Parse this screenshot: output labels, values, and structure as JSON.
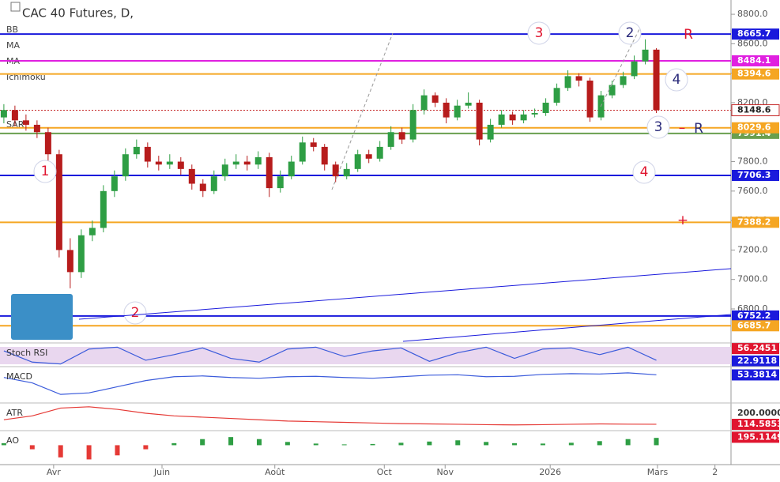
{
  "chart_data": {
    "type": "candlestick",
    "title": "CAC 40 Futures, D,",
    "indicator_labels": [
      "BB",
      "MA",
      "MA",
      "Ichimoku",
      "SAR"
    ],
    "xlim": [
      -0.35,
      65.75
    ],
    "xticks": [
      {
        "value": 4.5,
        "label": "Avr"
      },
      {
        "value": 14.3,
        "label": "Juin"
      },
      {
        "value": 24.5,
        "label": "Août"
      },
      {
        "value": 34.4,
        "label": "Oct"
      },
      {
        "value": 39.9,
        "label": "Nov"
      },
      {
        "value": 49.4,
        "label": "2026"
      },
      {
        "value": 59.1,
        "label": "Mars"
      },
      {
        "value": 64.3,
        "label": "2"
      }
    ],
    "ylim": [
      6580,
      8897
    ],
    "yticks": [
      {
        "value": 8800,
        "label": "8800.0"
      },
      {
        "value": 8600,
        "label": "8600.0"
      },
      {
        "value": 8400,
        "label": "8400.0"
      },
      {
        "value": 8200,
        "label": "8200.0"
      },
      {
        "value": 8000,
        "label": "8000.0"
      },
      {
        "value": 7800,
        "label": "7800.0"
      },
      {
        "value": 7600,
        "label": "7600.0"
      },
      {
        "value": 7400,
        "label": "7400.0"
      },
      {
        "value": 7200,
        "label": "7200.0"
      },
      {
        "value": 7000,
        "label": "7000.0"
      },
      {
        "value": 6800,
        "label": "6800.0"
      }
    ],
    "up_color": "#2e9e44",
    "down_color": "#b71c1c",
    "open": [
      8100,
      8150,
      8080,
      8050,
      8000,
      7850,
      7200,
      7050,
      7300,
      7350,
      7600,
      7700,
      7850,
      7900,
      7800,
      7780,
      7800,
      7750,
      7650,
      7600,
      7700,
      7780,
      7800,
      7780,
      7830,
      7620,
      7700,
      7800,
      7930,
      7900,
      7780,
      7700,
      7750,
      7850,
      7820,
      7900,
      8000,
      7950,
      8150,
      8250,
      8200,
      8100,
      8180,
      8200,
      7950,
      8050,
      8120,
      8080,
      8120,
      8130,
      8200,
      8300,
      8380,
      8350,
      8100,
      8250,
      8320,
      8380,
      8480,
      8560
    ],
    "high": [
      8190,
      8180,
      8120,
      8080,
      8030,
      7880,
      7280,
      7340,
      7400,
      7640,
      7740,
      7890,
      7950,
      7930,
      7840,
      7850,
      7830,
      7780,
      7680,
      7740,
      7820,
      7850,
      7840,
      7870,
      7860,
      7740,
      7840,
      7970,
      7960,
      7920,
      7800,
      7790,
      7880,
      7880,
      7940,
      8040,
      8030,
      8190,
      8290,
      8270,
      8230,
      8220,
      8270,
      8220,
      8090,
      8150,
      8140,
      8150,
      8160,
      8230,
      8330,
      8420,
      8400,
      8370,
      8280,
      8350,
      8410,
      8520,
      8630,
      8570
    ],
    "low": [
      8060,
      8040,
      8010,
      7960,
      7800,
      7150,
      6940,
      7010,
      7260,
      7320,
      7560,
      7670,
      7820,
      7760,
      7740,
      7750,
      7710,
      7610,
      7560,
      7580,
      7670,
      7750,
      7740,
      7750,
      7560,
      7590,
      7680,
      7780,
      7870,
      7740,
      7660,
      7680,
      7730,
      7790,
      7800,
      7880,
      7920,
      7930,
      8120,
      8170,
      8060,
      8080,
      8160,
      7910,
      7930,
      8030,
      8050,
      8060,
      8100,
      8110,
      8180,
      8280,
      8310,
      8070,
      8080,
      8230,
      8300,
      8360,
      8460,
      8130
    ],
    "close": [
      8150,
      8080,
      8050,
      8000,
      7850,
      7200,
      7050,
      7300,
      7350,
      7600,
      7700,
      7850,
      7900,
      7800,
      7780,
      7800,
      7750,
      7650,
      7600,
      7700,
      7780,
      7800,
      7780,
      7830,
      7620,
      7700,
      7800,
      7930,
      7900,
      7780,
      7700,
      7750,
      7850,
      7820,
      7900,
      8000,
      7950,
      8150,
      8250,
      8200,
      8100,
      8180,
      8200,
      7950,
      8050,
      8120,
      8080,
      8120,
      8130,
      8200,
      8300,
      8380,
      8350,
      8100,
      8250,
      8320,
      8380,
      8480,
      8560,
      8150
    ],
    "levels": [
      {
        "value": 8665.7,
        "color": "#1a1adc"
      },
      {
        "value": 8484.1,
        "color": "#e020e0"
      },
      {
        "value": 8394.6,
        "color": "#f5a623"
      },
      {
        "value": 8148.6,
        "color": "#c62828"
      },
      {
        "value": 7991.4,
        "color": "#6a9f4f"
      },
      {
        "value": 8029.6,
        "color": "#f5a623"
      },
      {
        "value": 7706.3,
        "color": "#1a1adc"
      },
      {
        "value": 7388.2,
        "color": "#f5a623"
      },
      {
        "value": 6752.2,
        "color": "#1a1adc"
      },
      {
        "value": 6685.7,
        "color": "#f5a623"
      }
    ],
    "annotations": [
      {
        "text": "1",
        "color": "#e0152f"
      },
      {
        "text": "2",
        "color": "#e0152f"
      },
      {
        "text": "3",
        "color": "#e0152f"
      },
      {
        "text": "2",
        "color": "#2a2a7a"
      },
      {
        "text": "R",
        "color": "#e0152f"
      },
      {
        "text": "4",
        "color": "#2a2a7a"
      },
      {
        "text": "3",
        "color": "#2a2a7a"
      },
      {
        "text": "–",
        "color": "#e0152f"
      },
      {
        "text": "R",
        "color": "#2a2a7a"
      },
      {
        "text": "4",
        "color": "#e0152f"
      },
      {
        "text": "+",
        "color": "#e0152f"
      }
    ],
    "panes": [
      {
        "label": "Stoch RSI",
        "ylim": [
          10,
          65
        ],
        "color": "#3b5bdb",
        "values": [
          50,
          20,
          15,
          55,
          60,
          25,
          40,
          58,
          30,
          20,
          55,
          60,
          35,
          50,
          58,
          22,
          45,
          60,
          30,
          55,
          58,
          40,
          60,
          25
        ],
        "markers": [
          {
            "value": 56.2451,
            "color": "#e0152f"
          },
          {
            "value": 22.9118,
            "color": "#1a1adc"
          }
        ]
      },
      {
        "label": "MACD",
        "ylim": [
          -260,
          130
        ],
        "color": "#3b5bdb",
        "values": [
          20,
          -50,
          -200,
          -180,
          -100,
          -20,
          30,
          40,
          20,
          10,
          30,
          35,
          20,
          10,
          30,
          50,
          55,
          30,
          35,
          60,
          70,
          65,
          80,
          55
        ],
        "markers": [
          {
            "value": 53.3814,
            "color": "#1a1adc"
          }
        ]
      },
      {
        "label": "ATR",
        "ylim": [
          66,
          261
        ],
        "color": "#e53935",
        "values": [
          150,
          180,
          240,
          250,
          230,
          200,
          180,
          170,
          160,
          150,
          140,
          135,
          130,
          125,
          120,
          118,
          115,
          112,
          110,
          112,
          115,
          118,
          116,
          115
        ],
        "markers": [
          {
            "value": 200,
            "label": "200.0000",
            "color": "#ffffff"
          },
          {
            "value": 114.5853,
            "color": "#e0152f"
          }
        ]
      },
      {
        "label": "AO",
        "ylim": [
          -400,
          300
        ],
        "color": "#2e9e44",
        "values": [
          50,
          -100,
          -300,
          -350,
          -250,
          -100,
          50,
          150,
          200,
          150,
          80,
          40,
          20,
          30,
          60,
          90,
          120,
          80,
          50,
          40,
          60,
          100,
          150,
          180
        ],
        "markers": [
          {
            "value": 195.1149,
            "color": "#e0152f"
          }
        ]
      }
    ]
  }
}
